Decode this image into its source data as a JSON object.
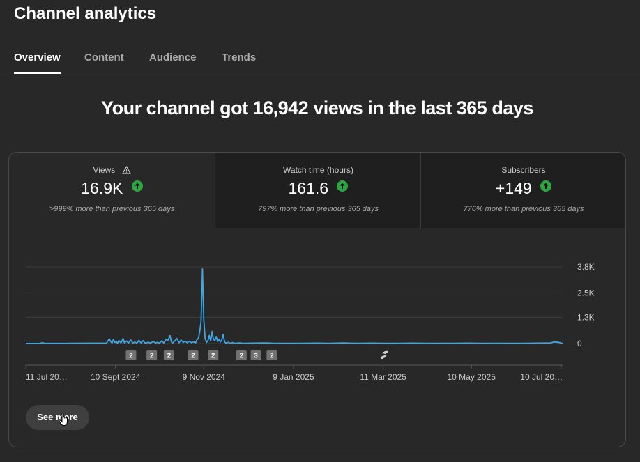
{
  "page": {
    "title": "Channel analytics",
    "tabs": [
      {
        "label": "Overview",
        "active": true
      },
      {
        "label": "Content",
        "active": false
      },
      {
        "label": "Audience",
        "active": false
      },
      {
        "label": "Trends",
        "active": false
      }
    ],
    "headline": "Your channel got 16,942 views in the last 365 days"
  },
  "metrics": [
    {
      "label": "Views",
      "value": "16.9K",
      "change": ">999% more than previous 365 days",
      "icon": "warning-icon",
      "trend": "up",
      "selected": true
    },
    {
      "label": "Watch time (hours)",
      "value": "161.6",
      "change": "797% more than previous 365 days",
      "trend": "up",
      "selected": false
    },
    {
      "label": "Subscribers",
      "value": "+149",
      "change": "776% more than previous 365 days",
      "trend": "up",
      "selected": false
    }
  ],
  "colors": {
    "line": "#3ea6e3",
    "trend_up": "#2ba640",
    "background": "#282828"
  },
  "chart_data": {
    "type": "line",
    "x_range": [
      "2024-07-11",
      "2025-07-11"
    ],
    "x_tick_labels": [
      "11 Jul 20…",
      "10 Sept 2024",
      "9 Nov 2024",
      "9 Jan 2025",
      "11 Mar 2025",
      "10 May 2025",
      "10 Jul 20…"
    ],
    "y_tick_labels": [
      "3.8K",
      "2.5K",
      "1.3K",
      "0"
    ],
    "ylim": [
      0,
      3800
    ],
    "grid": true,
    "series": [
      {
        "points": [
          [
            0,
            5
          ],
          [
            20,
            8
          ],
          [
            25,
            40
          ],
          [
            27,
            8
          ],
          [
            60,
            6
          ],
          [
            62,
            10
          ],
          [
            117,
            20
          ],
          [
            121,
            230
          ],
          [
            123,
            100
          ],
          [
            125,
            30
          ],
          [
            127,
            200
          ],
          [
            129,
            60
          ],
          [
            131,
            100
          ],
          [
            133,
            20
          ],
          [
            135,
            150
          ],
          [
            138,
            30
          ],
          [
            141,
            250
          ],
          [
            143,
            30
          ],
          [
            146,
            120
          ],
          [
            149,
            25
          ],
          [
            152,
            180
          ],
          [
            155,
            30
          ],
          [
            158,
            70
          ],
          [
            161,
            20
          ],
          [
            164,
            160
          ],
          [
            167,
            30
          ],
          [
            170,
            140
          ],
          [
            173,
            20
          ],
          [
            178,
            60
          ],
          [
            180,
            20
          ],
          [
            185,
            100
          ],
          [
            188,
            30
          ],
          [
            191,
            60
          ],
          [
            194,
            20
          ],
          [
            197,
            130
          ],
          [
            200,
            30
          ],
          [
            203,
            200
          ],
          [
            206,
            150
          ],
          [
            209,
            390
          ],
          [
            211,
            80
          ],
          [
            213,
            30
          ],
          [
            216,
            130
          ],
          [
            219,
            250
          ],
          [
            222,
            40
          ],
          [
            225,
            170
          ],
          [
            228,
            60
          ],
          [
            231,
            120
          ],
          [
            234,
            40
          ],
          [
            237,
            110
          ],
          [
            240,
            40
          ],
          [
            243,
            80
          ],
          [
            246,
            30
          ],
          [
            248,
            180
          ],
          [
            250,
            250
          ],
          [
            252,
            560
          ],
          [
            254,
            1100
          ],
          [
            256,
            3700
          ],
          [
            258,
            1200
          ],
          [
            260,
            240
          ],
          [
            262,
            60
          ],
          [
            264,
            150
          ],
          [
            266,
            400
          ],
          [
            268,
            120
          ],
          [
            270,
            600
          ],
          [
            272,
            200
          ],
          [
            274,
            150
          ],
          [
            276,
            350
          ],
          [
            278,
            100
          ],
          [
            280,
            200
          ],
          [
            282,
            80
          ],
          [
            284,
            180
          ],
          [
            286,
            450
          ],
          [
            288,
            100
          ],
          [
            290,
            20
          ],
          [
            294,
            60
          ],
          [
            296,
            10
          ],
          [
            300,
            50
          ],
          [
            302,
            10
          ],
          [
            310,
            30
          ],
          [
            315,
            10
          ],
          [
            330,
            20
          ],
          [
            345,
            30
          ],
          [
            360,
            10
          ],
          [
            380,
            15
          ],
          [
            400,
            10
          ],
          [
            420,
            20
          ],
          [
            440,
            15
          ],
          [
            460,
            30
          ],
          [
            480,
            10
          ],
          [
            500,
            20
          ],
          [
            520,
            15
          ],
          [
            540,
            10
          ],
          [
            560,
            20
          ],
          [
            580,
            10
          ],
          [
            600,
            15
          ],
          [
            620,
            10
          ],
          [
            640,
            20
          ],
          [
            660,
            15
          ],
          [
            680,
            10
          ],
          [
            700,
            15
          ],
          [
            720,
            10
          ],
          [
            740,
            20
          ],
          [
            760,
            30
          ],
          [
            766,
            80
          ],
          [
            772,
            60
          ],
          [
            778,
            10
          ]
        ]
      }
    ],
    "markers": [
      {
        "label": "2",
        "x": 152
      },
      {
        "label": "2",
        "x": 182
      },
      {
        "label": "2",
        "x": 207
      },
      {
        "label": "2",
        "x": 242
      },
      {
        "label": "2",
        "x": 271
      },
      {
        "label": "2",
        "x": 312
      },
      {
        "label": "3",
        "x": 333
      },
      {
        "label": "2",
        "x": 356
      }
    ],
    "shorts_marker_x": 519
  },
  "actions": {
    "see_more": "See more"
  }
}
